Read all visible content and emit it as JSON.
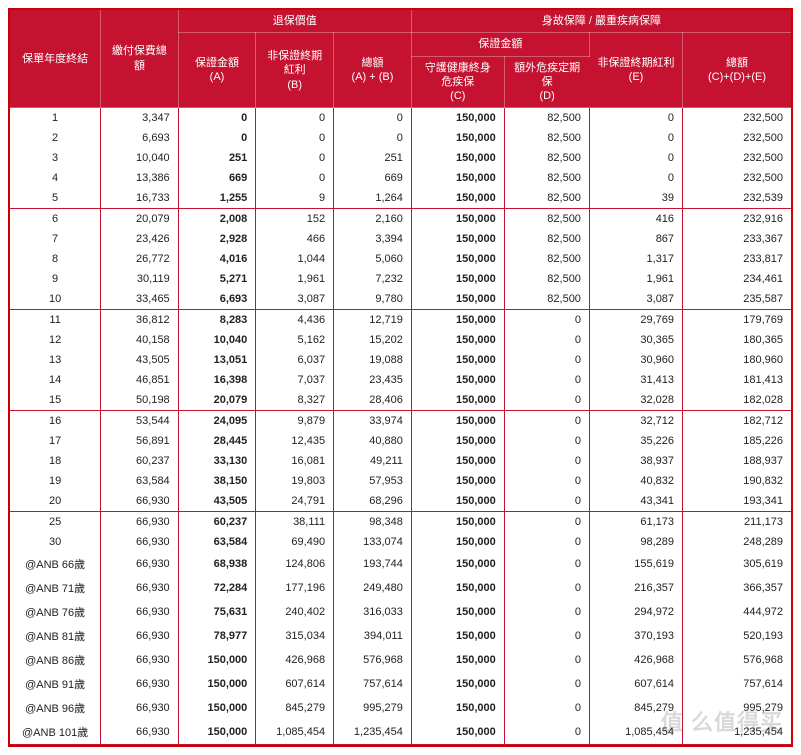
{
  "header": {
    "row1": {
      "c0": "保單年度終結",
      "c1": "繳付保費總額",
      "g1": "退保價值",
      "g2": "身故保障 / 嚴重疾病保障"
    },
    "row2": {
      "A": "保證金額\n(A)",
      "B": "非保證終期紅利\n(B)",
      "AB": "總額\n(A) + (B)",
      "g2a": "保證金額",
      "E": "非保證終期紅利\n(E)",
      "CDE": "總額\n(C)+(D)+(E)"
    },
    "row3": {
      "C": "守護健康終身\n危疾保\n(C)",
      "D": "額外危疾定期保\n(D)"
    }
  },
  "rows": [
    {
      "y": "1",
      "p": "3,347",
      "a": "0",
      "b": "0",
      "ab": "0",
      "c": "150,000",
      "d": "82,500",
      "e": "0",
      "t": "232,500"
    },
    {
      "y": "2",
      "p": "6,693",
      "a": "0",
      "b": "0",
      "ab": "0",
      "c": "150,000",
      "d": "82,500",
      "e": "0",
      "t": "232,500"
    },
    {
      "y": "3",
      "p": "10,040",
      "a": "251",
      "b": "0",
      "ab": "251",
      "c": "150,000",
      "d": "82,500",
      "e": "0",
      "t": "232,500"
    },
    {
      "y": "4",
      "p": "13,386",
      "a": "669",
      "b": "0",
      "ab": "669",
      "c": "150,000",
      "d": "82,500",
      "e": "0",
      "t": "232,500"
    },
    {
      "y": "5",
      "p": "16,733",
      "a": "1,255",
      "b": "9",
      "ab": "1,264",
      "c": "150,000",
      "d": "82,500",
      "e": "39",
      "t": "232,539",
      "end": true
    },
    {
      "y": "6",
      "p": "20,079",
      "a": "2,008",
      "b": "152",
      "ab": "2,160",
      "c": "150,000",
      "d": "82,500",
      "e": "416",
      "t": "232,916"
    },
    {
      "y": "7",
      "p": "23,426",
      "a": "2,928",
      "b": "466",
      "ab": "3,394",
      "c": "150,000",
      "d": "82,500",
      "e": "867",
      "t": "233,367"
    },
    {
      "y": "8",
      "p": "26,772",
      "a": "4,016",
      "b": "1,044",
      "ab": "5,060",
      "c": "150,000",
      "d": "82,500",
      "e": "1,317",
      "t": "233,817"
    },
    {
      "y": "9",
      "p": "30,119",
      "a": "5,271",
      "b": "1,961",
      "ab": "7,232",
      "c": "150,000",
      "d": "82,500",
      "e": "1,961",
      "t": "234,461"
    },
    {
      "y": "10",
      "p": "33,465",
      "a": "6,693",
      "b": "3,087",
      "ab": "9,780",
      "c": "150,000",
      "d": "82,500",
      "e": "3,087",
      "t": "235,587",
      "end": true
    },
    {
      "y": "11",
      "p": "36,812",
      "a": "8,283",
      "b": "4,436",
      "ab": "12,719",
      "c": "150,000",
      "d": "0",
      "e": "29,769",
      "t": "179,769"
    },
    {
      "y": "12",
      "p": "40,158",
      "a": "10,040",
      "b": "5,162",
      "ab": "15,202",
      "c": "150,000",
      "d": "0",
      "e": "30,365",
      "t": "180,365"
    },
    {
      "y": "13",
      "p": "43,505",
      "a": "13,051",
      "b": "6,037",
      "ab": "19,088",
      "c": "150,000",
      "d": "0",
      "e": "30,960",
      "t": "180,960"
    },
    {
      "y": "14",
      "p": "46,851",
      "a": "16,398",
      "b": "7,037",
      "ab": "23,435",
      "c": "150,000",
      "d": "0",
      "e": "31,413",
      "t": "181,413"
    },
    {
      "y": "15",
      "p": "50,198",
      "a": "20,079",
      "b": "8,327",
      "ab": "28,406",
      "c": "150,000",
      "d": "0",
      "e": "32,028",
      "t": "182,028",
      "end": true
    },
    {
      "y": "16",
      "p": "53,544",
      "a": "24,095",
      "b": "9,879",
      "ab": "33,974",
      "c": "150,000",
      "d": "0",
      "e": "32,712",
      "t": "182,712"
    },
    {
      "y": "17",
      "p": "56,891",
      "a": "28,445",
      "b": "12,435",
      "ab": "40,880",
      "c": "150,000",
      "d": "0",
      "e": "35,226",
      "t": "185,226"
    },
    {
      "y": "18",
      "p": "60,237",
      "a": "33,130",
      "b": "16,081",
      "ab": "49,211",
      "c": "150,000",
      "d": "0",
      "e": "38,937",
      "t": "188,937"
    },
    {
      "y": "19",
      "p": "63,584",
      "a": "38,150",
      "b": "19,803",
      "ab": "57,953",
      "c": "150,000",
      "d": "0",
      "e": "40,832",
      "t": "190,832"
    },
    {
      "y": "20",
      "p": "66,930",
      "a": "43,505",
      "b": "24,791",
      "ab": "68,296",
      "c": "150,000",
      "d": "0",
      "e": "43,341",
      "t": "193,341",
      "end": true
    },
    {
      "y": "25",
      "p": "66,930",
      "a": "60,237",
      "b": "38,111",
      "ab": "98,348",
      "c": "150,000",
      "d": "0",
      "e": "61,173",
      "t": "211,173"
    },
    {
      "y": "30",
      "p": "66,930",
      "a": "63,584",
      "b": "69,490",
      "ab": "133,074",
      "c": "150,000",
      "d": "0",
      "e": "98,289",
      "t": "248,289"
    },
    {
      "y": "@ANB 66歲",
      "p": "66,930",
      "a": "68,938",
      "b": "124,806",
      "ab": "193,744",
      "c": "150,000",
      "d": "0",
      "e": "155,619",
      "t": "305,619"
    },
    {
      "y": "@ANB 71歲",
      "p": "66,930",
      "a": "72,284",
      "b": "177,196",
      "ab": "249,480",
      "c": "150,000",
      "d": "0",
      "e": "216,357",
      "t": "366,357"
    },
    {
      "y": "@ANB 76歲",
      "p": "66,930",
      "a": "75,631",
      "b": "240,402",
      "ab": "316,033",
      "c": "150,000",
      "d": "0",
      "e": "294,972",
      "t": "444,972"
    },
    {
      "y": "@ANB 81歲",
      "p": "66,930",
      "a": "78,977",
      "b": "315,034",
      "ab": "394,011",
      "c": "150,000",
      "d": "0",
      "e": "370,193",
      "t": "520,193"
    },
    {
      "y": "@ANB 86歲",
      "p": "66,930",
      "a": "150,000",
      "b": "426,968",
      "ab": "576,968",
      "c": "150,000",
      "d": "0",
      "e": "426,968",
      "t": "576,968"
    },
    {
      "y": "@ANB 91歲",
      "p": "66,930",
      "a": "150,000",
      "b": "607,614",
      "ab": "757,614",
      "c": "150,000",
      "d": "0",
      "e": "607,614",
      "t": "757,614"
    },
    {
      "y": "@ANB 96歲",
      "p": "66,930",
      "a": "150,000",
      "b": "845,279",
      "ab": "995,279",
      "c": "150,000",
      "d": "0",
      "e": "845,279",
      "t": "995,279"
    },
    {
      "y": "@ANB 101歲",
      "p": "66,930",
      "a": "150,000",
      "b": "1,085,454",
      "ab": "1,235,454",
      "c": "150,000",
      "d": "0",
      "e": "1,085,454",
      "t": "1,235,454",
      "end": true
    }
  ],
  "watermark": "值  么值得买",
  "styling": {
    "header_bg": "#c41230",
    "header_fg": "#ffffff",
    "border_color": "#c41230",
    "body_fontsize": 11,
    "bold_cols": [
      "a",
      "c"
    ],
    "col_widths_pct": [
      11,
      10,
      10,
      10,
      10,
      12,
      11,
      12,
      14
    ]
  }
}
